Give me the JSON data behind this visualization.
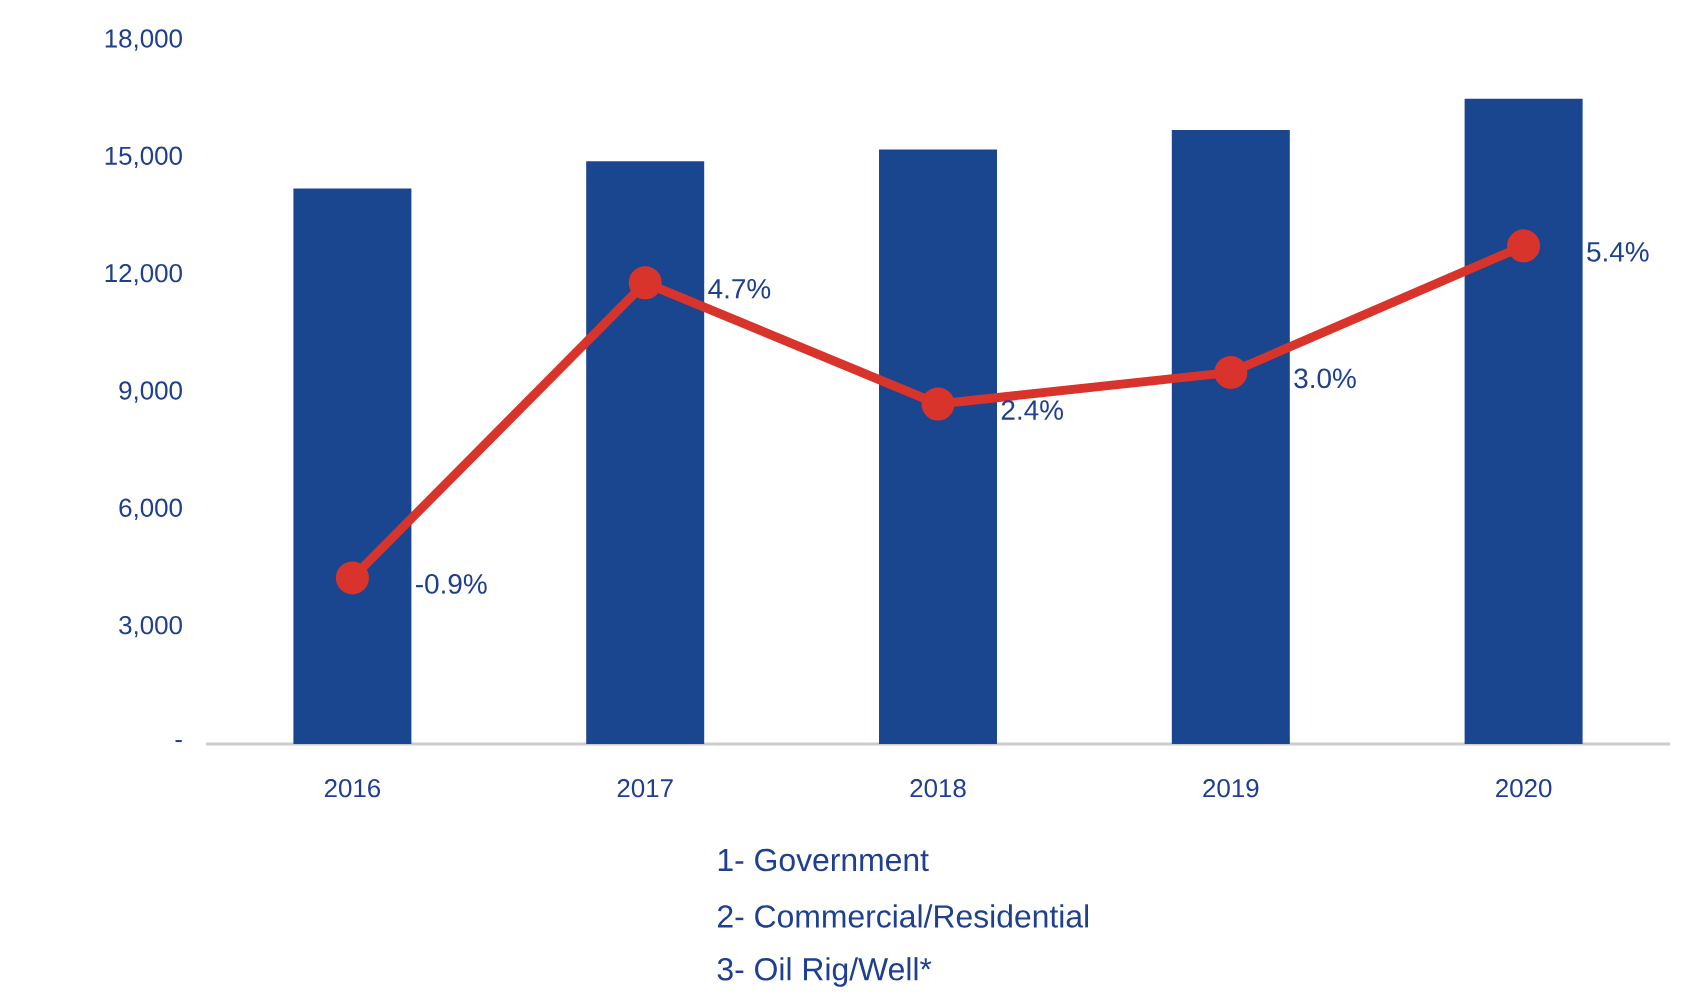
{
  "chart_data": {
    "type": "bar",
    "categories": [
      "2016",
      "2017",
      "2018",
      "2019",
      "2020"
    ],
    "series": [
      {
        "color": "#1a4690",
        "values": [
          14200,
          14900,
          15200,
          15700,
          16500
        ]
      },
      {
        "type": "line",
        "axis": "y2",
        "color": "#d9342b",
        "marker": "circle",
        "values": [
          -0.9,
          4.7,
          2.4,
          3.0,
          5.4
        ],
        "value_labels": [
          "-0.9%",
          "4.7%",
          "2.4%",
          "3.0%",
          "5.4%"
        ]
      }
    ],
    "ylim": [
      0,
      18000
    ],
    "yticks": [
      {
        "value": 0,
        "label": "-"
      },
      {
        "value": 3000,
        "label": "3,000"
      },
      {
        "value": 6000,
        "label": "6,000"
      },
      {
        "value": 9000,
        "label": "9,000"
      },
      {
        "value": 12000,
        "label": "12,000"
      },
      {
        "value": 15000,
        "label": "15,000"
      },
      {
        "value": 18000,
        "label": "18,000"
      }
    ],
    "grid": false,
    "annotations": [
      "1- Government",
      "2- Commercial/Residential",
      "3- Oil Rig/Well*"
    ]
  }
}
